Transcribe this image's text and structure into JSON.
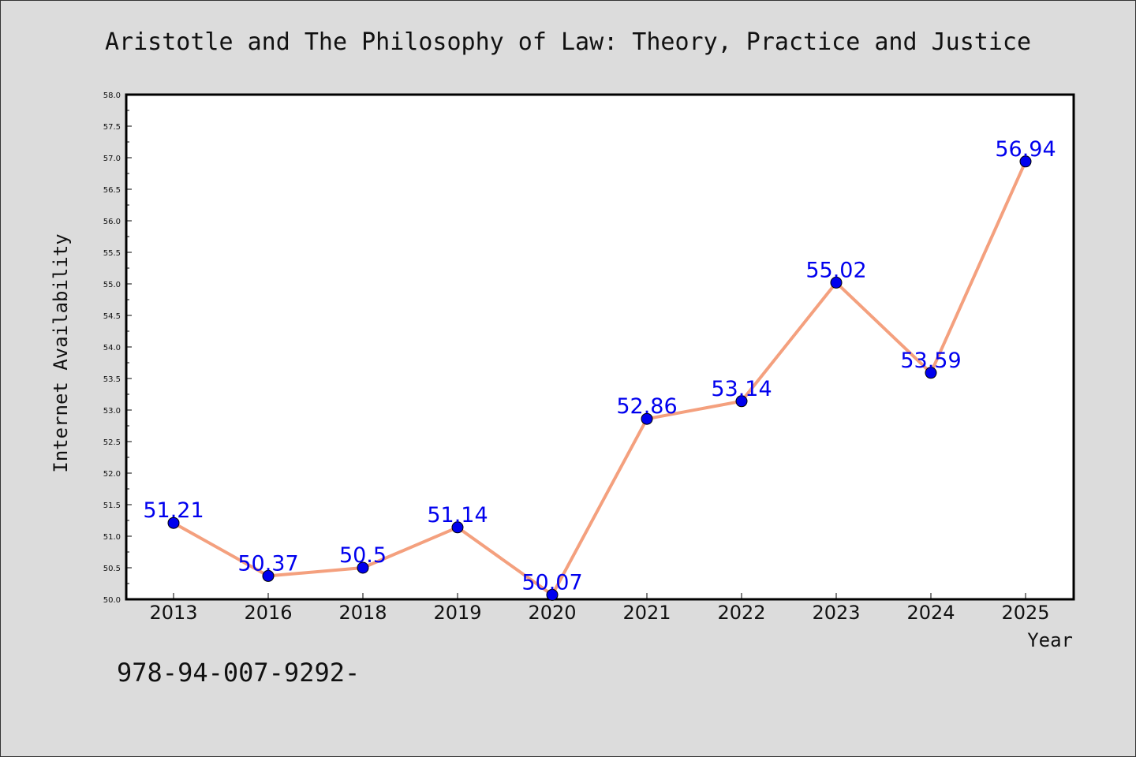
{
  "chart_data": {
    "type": "line",
    "title": "Aristotle and The Philosophy of Law: Theory, Practice and Justice",
    "xlabel": "Year",
    "ylabel": "Internet Availability",
    "categories": [
      "2013",
      "2016",
      "2018",
      "2019",
      "2020",
      "2021",
      "2022",
      "2023",
      "2024",
      "2025"
    ],
    "series": [
      {
        "values": [
          51.21,
          50.37,
          50.5,
          51.14,
          50.07,
          52.86,
          53.14,
          55.02,
          53.59,
          56.94
        ],
        "data_labels": [
          "51.21",
          "50.37",
          "50.5",
          "51.14",
          "50.07",
          "52.86",
          "53.14",
          "55.02",
          "53.59",
          "56.94"
        ]
      }
    ],
    "ylim": [
      50.0,
      58.0
    ],
    "yticks": [
      "50.0",
      "50.5",
      "51.0",
      "51.5",
      "52.0",
      "52.5",
      "53.0",
      "53.5",
      "54.0",
      "54.5",
      "55.0",
      "55.5",
      "56.0",
      "56.5",
      "57.0",
      "57.5",
      "58.0"
    ],
    "grid": false,
    "colors": {
      "line": "#f4a07e",
      "marker": "#0000ee",
      "data_label": "#0000ee"
    }
  },
  "footer": {
    "text": "978-94-007-9292-"
  }
}
